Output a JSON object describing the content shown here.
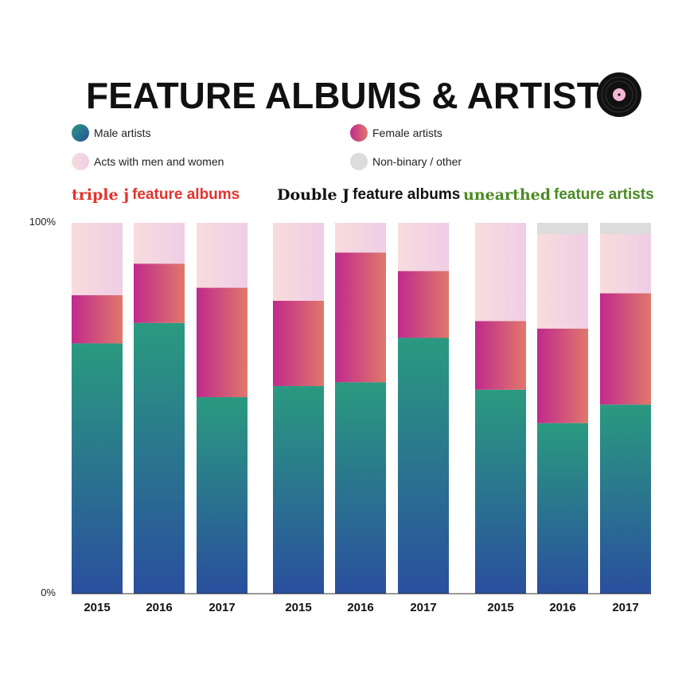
{
  "title": "FEATURE ALBUMS & ARTISTS",
  "legend": {
    "male": "Male artists",
    "female": "Female artists",
    "mixed": "Acts with men and women",
    "nonbinary": "Non-binary / other"
  },
  "brands": {
    "triplej_logo": "triple j",
    "triplej_suffix": "feature albums",
    "doublej_logo": "Double J",
    "doublej_suffix": "feature albums",
    "unearthed_logo": "unearthed",
    "unearthed_suffix": "feature artists"
  },
  "colors": {
    "male_top": "#2a9a7f",
    "male_bottom": "#2a4f9e",
    "female_left": "#c02a8c",
    "female_right": "#e0786a",
    "mixed_left": "#f8dcdc",
    "mixed_right": "#efcde6",
    "nonbinary": "#dcdcdc",
    "triplej": "#e5322d",
    "unearthed": "#4a8a22"
  },
  "chart_data": {
    "type": "bar",
    "stacked": true,
    "percent": true,
    "ytick_labels": [
      "100%",
      "0%"
    ],
    "ylim": [
      0,
      100
    ],
    "groups": [
      "triple j feature albums",
      "Double J feature albums",
      "unearthed feature artists"
    ],
    "categories": [
      "2015",
      "2016",
      "2017",
      "2015",
      "2016",
      "2017",
      "2015",
      "2016",
      "2017"
    ],
    "series": [
      {
        "name": "Male artists",
        "key": "male",
        "values": [
          67.5,
          73,
          53,
          56,
          57,
          69,
          55,
          46,
          51
        ]
      },
      {
        "name": "Female artists",
        "key": "female",
        "values": [
          13,
          16,
          29.5,
          23,
          35,
          18,
          18.5,
          25.5,
          30
        ]
      },
      {
        "name": "Acts with men and women",
        "key": "mixed",
        "values": [
          19.5,
          11,
          17.5,
          21,
          8,
          13,
          26.5,
          25.5,
          16
        ]
      },
      {
        "name": "Non-binary / other",
        "key": "nonbinary",
        "values": [
          0,
          0,
          0,
          0,
          0,
          0,
          0,
          3,
          3
        ]
      }
    ]
  }
}
